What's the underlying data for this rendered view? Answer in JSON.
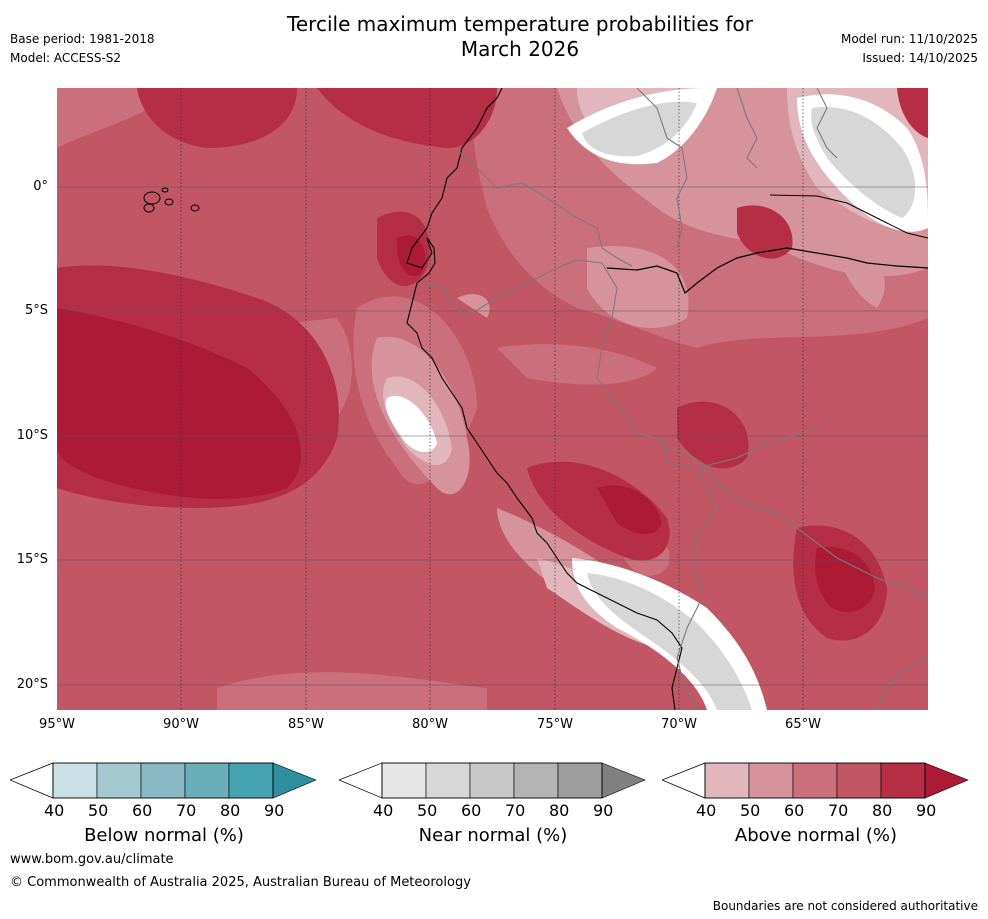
{
  "header": {
    "title_line1": "Tercile maximum temperature probabilities for",
    "title_line2": "March 2026",
    "base_period": "Base period: 1981-2018",
    "model": "Model: ACCESS-S2",
    "model_run": "Model run: 11/10/2025",
    "issued": "Issued: 14/10/2025"
  },
  "map": {
    "lat_labels": [
      "0°",
      "5°S",
      "10°S",
      "15°S",
      "20°S"
    ],
    "lon_labels": [
      "95°W",
      "90°W",
      "85°W",
      "80°W",
      "75°W",
      "70°W",
      "65°W"
    ]
  },
  "colorbars": [
    {
      "label": "Below normal (%)",
      "ticks": [
        "40",
        "50",
        "60",
        "70",
        "80",
        "90"
      ],
      "colors": [
        "#c9e1e6",
        "#a5c9d0",
        "#87b8c3",
        "#6aaeba",
        "#45a2b1",
        "#2f8ea0"
      ]
    },
    {
      "label": "Near normal (%)",
      "ticks": [
        "40",
        "50",
        "60",
        "70",
        "80",
        "90"
      ],
      "colors": [
        "#e6e6e6",
        "#d7d7d7",
        "#c8c8c8",
        "#b4b4b4",
        "#9e9e9e",
        "#808080"
      ]
    },
    {
      "label": "Above normal (%)",
      "ticks": [
        "40",
        "50",
        "60",
        "70",
        "80",
        "90"
      ],
      "colors": [
        "#e1b7bd",
        "#d6939c",
        "#cb6f7c",
        "#c25664",
        "#b62e46",
        "#ad1a36"
      ]
    }
  ],
  "footer": {
    "website": "www.bom.gov.au/climate",
    "copyright": "© Commonwealth of Australia 2025, Australian Bureau of Meteorology",
    "disclaimer": "Boundaries are not considered authoritative"
  }
}
